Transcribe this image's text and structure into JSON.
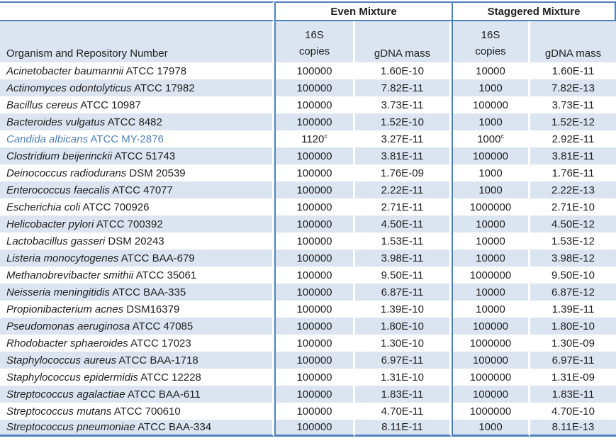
{
  "colors": {
    "accent": "#4f81bd",
    "stripe": "#dbe5f1",
    "ink": "#1f1f1f",
    "hl": "#4f81bd"
  },
  "table": {
    "group_headers": [
      "Even Mixture",
      "Staggered Mixture"
    ],
    "col_headers": {
      "organism": "Organism and Repository Number",
      "copies_line1": "16S",
      "copies_line2": "copies",
      "gdna": "gDNA mass"
    },
    "rows": [
      {
        "species": "Acinetobacter baumannii",
        "accession": "ATCC 17978",
        "even_copies": "100000",
        "even_gdna": "1.60E-10",
        "stag_copies": "10000",
        "stag_gdna": "1.60E-11"
      },
      {
        "species": "Actinomyces odontolyticus",
        "accession": "ATCC 17982",
        "even_copies": "100000",
        "even_gdna": "7.82E-11",
        "stag_copies": "1000",
        "stag_gdna": "7.82E-13"
      },
      {
        "species": "Bacillus cereus",
        "accession": "ATCC 10987",
        "even_copies": "100000",
        "even_gdna": "3.73E-11",
        "stag_copies": "100000",
        "stag_gdna": "3.73E-11"
      },
      {
        "species": "Bacteroides vulgatus",
        "accession": "ATCC 8482",
        "even_copies": "100000",
        "even_gdna": "1.52E-10",
        "stag_copies": "1000",
        "stag_gdna": "1.52E-12"
      },
      {
        "species": "Candida albicans",
        "accession": "ATCC MY-2876",
        "even_copies": "1120",
        "even_copies_sup": "c",
        "even_gdna": "3.27E-11",
        "stag_copies": "1000",
        "stag_copies_sup": "c",
        "stag_gdna": "2.92E-11",
        "highlight": true
      },
      {
        "species": "Clostridium beijerinckii",
        "accession": "ATCC 51743",
        "even_copies": "100000",
        "even_gdna": "3.81E-11",
        "stag_copies": "100000",
        "stag_gdna": "3.81E-11"
      },
      {
        "species": "Deinococcus radiodurans",
        "accession": "DSM 20539",
        "even_copies": "100000",
        "even_gdna": "1.76E-09",
        "stag_copies": "1000",
        "stag_gdna": "1.76E-11"
      },
      {
        "species": "Enterococcus faecalis",
        "accession": "ATCC 47077",
        "even_copies": "100000",
        "even_gdna": "2.22E-11",
        "stag_copies": "1000",
        "stag_gdna": "2.22E-13"
      },
      {
        "species": "Escherichia coli",
        "accession": "ATCC 700926",
        "even_copies": "100000",
        "even_gdna": "2.71E-11",
        "stag_copies": "1000000",
        "stag_gdna": "2.71E-10"
      },
      {
        "species": "Helicobacter pylori",
        "accession": "ATCC 700392",
        "even_copies": "100000",
        "even_gdna": "4.50E-11",
        "stag_copies": "10000",
        "stag_gdna": "4.50E-12"
      },
      {
        "species": "Lactobacillus gasseri",
        "accession": "DSM 20243",
        "even_copies": "100000",
        "even_gdna": "1.53E-11",
        "stag_copies": "10000",
        "stag_gdna": "1.53E-12"
      },
      {
        "species": "Listeria monocytogenes",
        "accession": "ATCC BAA-679",
        "even_copies": "100000",
        "even_gdna": "3.98E-11",
        "stag_copies": "10000",
        "stag_gdna": "3.98E-12"
      },
      {
        "species": "Methanobrevibacter smithii",
        "accession": "ATCC 35061",
        "even_copies": "100000",
        "even_gdna": "9.50E-11",
        "stag_copies": "1000000",
        "stag_gdna": "9.50E-10"
      },
      {
        "species": "Neisseria meningitidis",
        "accession": "ATCC BAA-335",
        "even_copies": "100000",
        "even_gdna": "6.87E-11",
        "stag_copies": "10000",
        "stag_gdna": "6.87E-12"
      },
      {
        "species": "Propionibacterium acnes",
        "accession": "DSM16379",
        "even_copies": "100000",
        "even_gdna": "1.39E-10",
        "stag_copies": "10000",
        "stag_gdna": "1.39E-11"
      },
      {
        "species": "Pseudomonas aeruginosa",
        "accession": "ATCC 47085",
        "even_copies": "100000",
        "even_gdna": "1.80E-10",
        "stag_copies": "100000",
        "stag_gdna": "1.80E-10"
      },
      {
        "species": "Rhodobacter sphaeroides",
        "accession": "ATCC 17023",
        "even_copies": "100000",
        "even_gdna": "1.30E-10",
        "stag_copies": "1000000",
        "stag_gdna": "1.30E-09"
      },
      {
        "species": "Staphylococcus aureus",
        "accession": "ATCC BAA-1718",
        "even_copies": "100000",
        "even_gdna": "6.97E-11",
        "stag_copies": "100000",
        "stag_gdna": "6.97E-11"
      },
      {
        "species": "Staphylococcus epidermidis",
        "accession": "ATCC 12228",
        "even_copies": "100000",
        "even_gdna": "1.31E-10",
        "stag_copies": "1000000",
        "stag_gdna": "1.31E-09"
      },
      {
        "species": "Streptococcus agalactiae",
        "accession": "ATCC BAA-611",
        "even_copies": "100000",
        "even_gdna": "1.83E-11",
        "stag_copies": "100000",
        "stag_gdna": "1.83E-11"
      },
      {
        "species": "Streptococcus mutans",
        "accession": "ATCC 700610",
        "even_copies": "100000",
        "even_gdna": "4.70E-11",
        "stag_copies": "1000000",
        "stag_gdna": "4.70E-10"
      },
      {
        "species": "Streptococcus pneumoniae",
        "accession": "ATCC BAA-334",
        "even_copies": "100000",
        "even_gdna": "8.11E-11",
        "stag_copies": "1000",
        "stag_gdna": "8.11E-13"
      }
    ]
  }
}
